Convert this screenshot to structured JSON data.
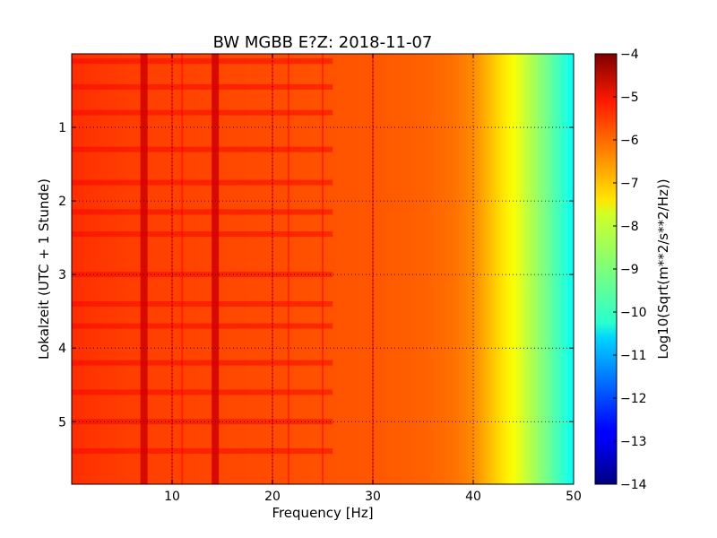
{
  "chart_data": {
    "type": "heatmap",
    "title": "BW MGBB E?Z: 2018-11-07",
    "xlabel": "Frequency [Hz]",
    "ylabel": "Lokalzeit (UTC + 1 Stunde)",
    "xlim": [
      0,
      50
    ],
    "ylim": [
      0,
      5.85
    ],
    "y_inverted": true,
    "x_ticks": [
      10,
      20,
      30,
      40,
      50
    ],
    "y_ticks": [
      1,
      2,
      3,
      4,
      5
    ],
    "grid": true,
    "colormap": "jet",
    "colorbar": {
      "label": "Log10(Sqrt(m**2/s**2/Hz))",
      "range": [
        -14,
        -4
      ],
      "ticks": [
        -4,
        -5,
        -6,
        -7,
        -8,
        -9,
        -10,
        -11,
        -12,
        -13,
        -14
      ]
    },
    "frequency_profile": {
      "x": [
        0,
        5,
        10,
        15,
        20,
        25,
        30,
        35,
        38,
        40,
        41,
        42,
        43,
        44,
        45,
        46,
        47,
        48,
        49,
        50
      ],
      "values": [
        -5.7,
        -5.85,
        -5.9,
        -5.95,
        -6.0,
        -6.05,
        -6.1,
        -6.2,
        -6.35,
        -6.6,
        -6.9,
        -7.2,
        -7.5,
        -7.8,
        -8.2,
        -8.6,
        -9.0,
        -9.4,
        -9.8,
        -10.2
      ]
    },
    "vertical_lines_hz": [
      7.2,
      10.0,
      11.0,
      14.3,
      20.0,
      21.6,
      25.0,
      30.0
    ],
    "horizontal_bands": [
      0.1,
      0.45,
      0.8,
      1.3,
      1.75,
      2.15,
      2.45,
      3.0,
      3.4,
      3.7,
      4.2,
      4.6,
      5.0,
      5.4
    ]
  },
  "colors": {
    "grid": "#000000",
    "frame": "#000000"
  }
}
